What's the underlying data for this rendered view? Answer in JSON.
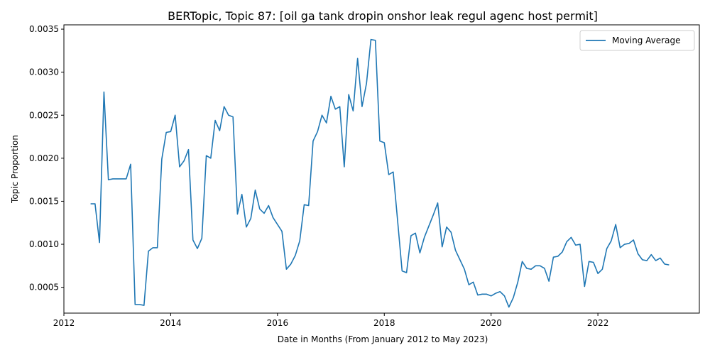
{
  "chart_data": {
    "type": "line",
    "title": "BERTopic, Topic 87: [oil ga tank dropin onshor leak regul agenc host permit]",
    "xlabel": "Date in Months (From January 2012 to May 2023)",
    "ylabel": "Topic Proportion",
    "xlim": [
      2012.0,
      2023.9
    ],
    "ylim": [
      0.0002,
      0.00355
    ],
    "x_ticks": [
      {
        "value": 2012,
        "label": "2012"
      },
      {
        "value": 2014,
        "label": "2014"
      },
      {
        "value": 2016,
        "label": "2016"
      },
      {
        "value": 2018,
        "label": "2018"
      },
      {
        "value": 2020,
        "label": "2020"
      },
      {
        "value": 2022,
        "label": "2022"
      }
    ],
    "y_ticks": [
      {
        "value": 0.0005,
        "label": "0.0005"
      },
      {
        "value": 0.001,
        "label": "0.0010"
      },
      {
        "value": 0.0015,
        "label": "0.0015"
      },
      {
        "value": 0.002,
        "label": "0.0020"
      },
      {
        "value": 0.0025,
        "label": "0.0025"
      },
      {
        "value": 0.003,
        "label": "0.0030"
      },
      {
        "value": 0.0035,
        "label": "0.0035"
      }
    ],
    "grid": false,
    "legend": {
      "placement": "top-right",
      "entries": [
        "Moving Average"
      ]
    },
    "series": [
      {
        "name": "Moving Average",
        "color": "#1f77b4",
        "points": [
          [
            "2012-07",
            0.00147
          ],
          [
            "2012-08",
            0.00147
          ],
          [
            "2012-09",
            0.00102
          ],
          [
            "2012-10",
            0.00277
          ],
          [
            "2012-11",
            0.00175
          ],
          [
            "2012-12",
            0.00176
          ],
          [
            "2013-01",
            0.00176
          ],
          [
            "2013-02",
            0.00176
          ],
          [
            "2013-03",
            0.00176
          ],
          [
            "2013-04",
            0.00193
          ],
          [
            "2013-05",
            0.0003
          ],
          [
            "2013-06",
            0.0003
          ],
          [
            "2013-07",
            0.00029
          ],
          [
            "2013-08",
            0.00092
          ],
          [
            "2013-09",
            0.00096
          ],
          [
            "2013-10",
            0.00096
          ],
          [
            "2013-11",
            0.00199
          ],
          [
            "2013-12",
            0.0023
          ],
          [
            "2014-01",
            0.00231
          ],
          [
            "2014-02",
            0.0025
          ],
          [
            "2014-03",
            0.0019
          ],
          [
            "2014-04",
            0.00197
          ],
          [
            "2014-05",
            0.0021
          ],
          [
            "2014-06",
            0.00105
          ],
          [
            "2014-07",
            0.00095
          ],
          [
            "2014-08",
            0.00107
          ],
          [
            "2014-09",
            0.00203
          ],
          [
            "2014-10",
            0.002
          ],
          [
            "2014-11",
            0.00244
          ],
          [
            "2014-12",
            0.00232
          ],
          [
            "2015-01",
            0.0026
          ],
          [
            "2015-02",
            0.0025
          ],
          [
            "2015-03",
            0.00248
          ],
          [
            "2015-04",
            0.00135
          ],
          [
            "2015-05",
            0.00158
          ],
          [
            "2015-06",
            0.0012
          ],
          [
            "2015-07",
            0.0013
          ],
          [
            "2015-08",
            0.00163
          ],
          [
            "2015-09",
            0.00141
          ],
          [
            "2015-10",
            0.00136
          ],
          [
            "2015-11",
            0.00145
          ],
          [
            "2015-12",
            0.00131
          ],
          [
            "2016-01",
            0.00123
          ],
          [
            "2016-02",
            0.00115
          ],
          [
            "2016-03",
            0.00071
          ],
          [
            "2016-04",
            0.00077
          ],
          [
            "2016-05",
            0.00087
          ],
          [
            "2016-06",
            0.00104
          ],
          [
            "2016-07",
            0.00146
          ],
          [
            "2016-08",
            0.00145
          ],
          [
            "2016-09",
            0.0022
          ],
          [
            "2016-10",
            0.00231
          ],
          [
            "2016-11",
            0.0025
          ],
          [
            "2016-12",
            0.00241
          ],
          [
            "2017-01",
            0.00272
          ],
          [
            "2017-02",
            0.00257
          ],
          [
            "2017-03",
            0.0026
          ],
          [
            "2017-04",
            0.0019
          ],
          [
            "2017-05",
            0.00274
          ],
          [
            "2017-06",
            0.00255
          ],
          [
            "2017-07",
            0.00316
          ],
          [
            "2017-08",
            0.0026
          ],
          [
            "2017-09",
            0.00287
          ],
          [
            "2017-10",
            0.00338
          ],
          [
            "2017-11",
            0.00337
          ],
          [
            "2017-12",
            0.0022
          ],
          [
            "2018-01",
            0.00218
          ],
          [
            "2018-02",
            0.00181
          ],
          [
            "2018-03",
            0.00184
          ],
          [
            "2018-04",
            0.00127
          ],
          [
            "2018-05",
            0.00069
          ],
          [
            "2018-06",
            0.00067
          ],
          [
            "2018-07",
            0.0011
          ],
          [
            "2018-08",
            0.00113
          ],
          [
            "2018-09",
            0.0009
          ],
          [
            "2018-10",
            0.00108
          ],
          [
            "2018-11",
            0.00121
          ],
          [
            "2018-12",
            0.00134
          ],
          [
            "2019-01",
            0.00148
          ],
          [
            "2019-02",
            0.00097
          ],
          [
            "2019-03",
            0.0012
          ],
          [
            "2019-04",
            0.00114
          ],
          [
            "2019-05",
            0.00093
          ],
          [
            "2019-06",
            0.00082
          ],
          [
            "2019-07",
            0.00071
          ],
          [
            "2019-08",
            0.00053
          ],
          [
            "2019-09",
            0.00056
          ],
          [
            "2019-10",
            0.00041
          ],
          [
            "2019-11",
            0.00042
          ],
          [
            "2019-12",
            0.00042
          ],
          [
            "2020-01",
            0.0004
          ],
          [
            "2020-02",
            0.00043
          ],
          [
            "2020-03",
            0.00045
          ],
          [
            "2020-04",
            0.0004
          ],
          [
            "2020-05",
            0.00027
          ],
          [
            "2020-06",
            0.00038
          ],
          [
            "2020-07",
            0.00056
          ],
          [
            "2020-08",
            0.0008
          ],
          [
            "2020-09",
            0.00072
          ],
          [
            "2020-10",
            0.00071
          ],
          [
            "2020-11",
            0.00075
          ],
          [
            "2020-12",
            0.00075
          ],
          [
            "2021-01",
            0.00072
          ],
          [
            "2021-02",
            0.00057
          ],
          [
            "2021-03",
            0.00085
          ],
          [
            "2021-04",
            0.00086
          ],
          [
            "2021-05",
            0.00091
          ],
          [
            "2021-06",
            0.00103
          ],
          [
            "2021-07",
            0.00108
          ],
          [
            "2021-08",
            0.00099
          ],
          [
            "2021-09",
            0.001
          ],
          [
            "2021-10",
            0.00051
          ],
          [
            "2021-11",
            0.0008
          ],
          [
            "2021-12",
            0.00079
          ],
          [
            "2022-01",
            0.00066
          ],
          [
            "2022-02",
            0.00071
          ],
          [
            "2022-03",
            0.00095
          ],
          [
            "2022-04",
            0.00104
          ],
          [
            "2022-05",
            0.00123
          ],
          [
            "2022-06",
            0.00096
          ],
          [
            "2022-07",
            0.001
          ],
          [
            "2022-08",
            0.00101
          ],
          [
            "2022-09",
            0.00105
          ],
          [
            "2022-10",
            0.00089
          ],
          [
            "2022-11",
            0.00082
          ],
          [
            "2022-12",
            0.00081
          ],
          [
            "2023-01",
            0.00088
          ],
          [
            "2023-02",
            0.00081
          ],
          [
            "2023-03",
            0.00084
          ],
          [
            "2023-04",
            0.00077
          ],
          [
            "2023-05",
            0.00076
          ]
        ]
      }
    ]
  }
}
